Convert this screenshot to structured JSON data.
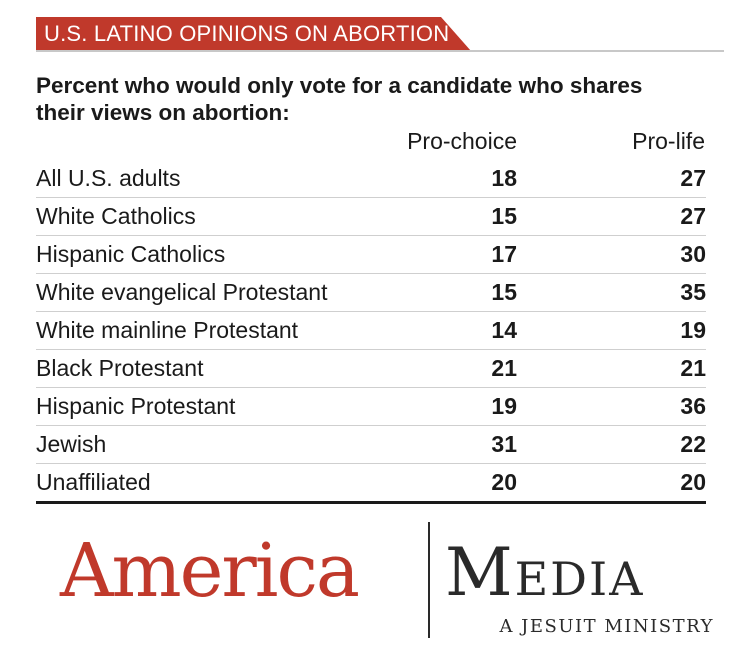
{
  "banner": {
    "title": "U.S. LATINO OPINIONS ON ABORTION",
    "color": "#c0392b"
  },
  "subtitle": "Percent who would only vote for a candidate who shares their views on abortion:",
  "chart_data": {
    "type": "table",
    "title": "U.S. LATINO OPINIONS ON ABORTION",
    "subtitle": "Percent who would only vote for a candidate who shares their views on abortion:",
    "columns": [
      "Pro-choice",
      "Pro-life"
    ],
    "categories": [
      "All U.S. adults",
      "White Catholics",
      "Hispanic Catholics",
      "White evangelical Protestant",
      "White mainline Protestant",
      "Black Protestant",
      "Hispanic Protestant",
      "Jewish",
      "Unaffiliated"
    ],
    "series": [
      {
        "name": "Pro-choice",
        "values": [
          18,
          15,
          17,
          15,
          14,
          21,
          19,
          31,
          20
        ]
      },
      {
        "name": "Pro-life",
        "values": [
          27,
          27,
          30,
          35,
          19,
          21,
          36,
          22,
          20
        ]
      }
    ]
  },
  "logo": {
    "name_left": "America",
    "name_right": "Media",
    "tagline": "A JESUIT MINISTRY",
    "accent": "#c0392b"
  }
}
